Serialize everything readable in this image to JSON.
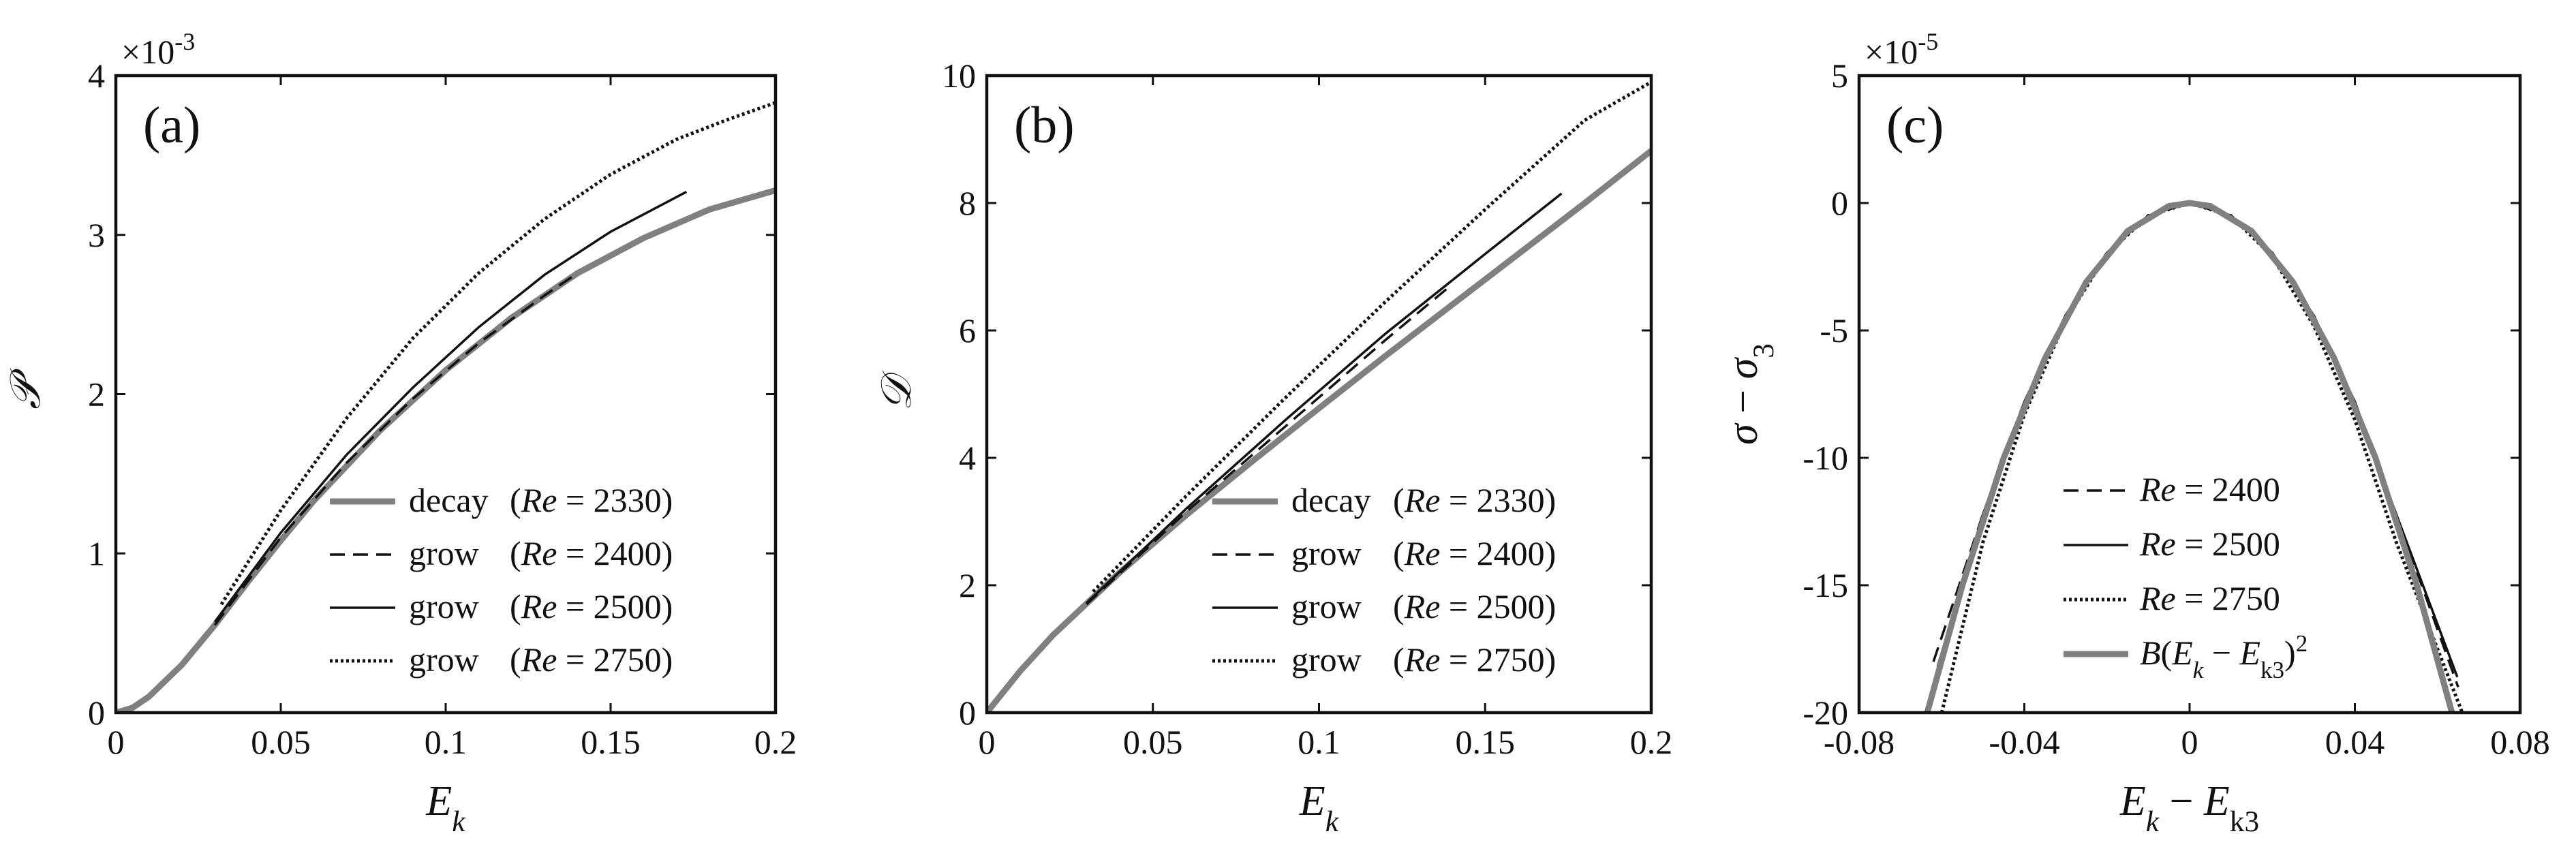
{
  "chart_data": [
    {
      "type": "line",
      "panel_label": "(a)",
      "xlabel": "E_k",
      "ylabel": "𝒫",
      "xlim": [
        0,
        0.2
      ],
      "ylim": [
        0,
        4
      ],
      "xticks": [
        0,
        0.05,
        0.1,
        0.15,
        0.2
      ],
      "xtick_labels": [
        "0",
        "0.05",
        "0.1",
        "0.15",
        "0.2"
      ],
      "yticks": [
        0,
        1,
        2,
        3,
        4
      ],
      "ytick_labels": [
        "0",
        "1",
        "2",
        "3",
        "4"
      ],
      "y_multiplier": "×10",
      "y_multiplier_exp": "-3",
      "legend_position": "bottom-right",
      "series": [
        {
          "name": "decay (Re = 2330)",
          "legend_word": "decay",
          "legend_cond": "(Re = 2330)",
          "style": "thick-gray",
          "color": "#808080",
          "x": [
            0,
            0.005,
            0.01,
            0.02,
            0.03,
            0.04,
            0.05,
            0.06,
            0.08,
            0.1,
            0.12,
            0.14,
            0.16,
            0.18,
            0.2
          ],
          "y": [
            0,
            0.03,
            0.1,
            0.3,
            0.55,
            0.82,
            1.08,
            1.33,
            1.77,
            2.15,
            2.48,
            2.76,
            2.98,
            3.16,
            3.28
          ]
        },
        {
          "name": "grow (Re = 2400)",
          "legend_word": "grow",
          "legend_cond": "(Re = 2400)",
          "style": "dashed",
          "color": "#000000",
          "x": [
            0.03,
            0.05,
            0.07,
            0.09,
            0.11,
            0.13,
            0.14
          ],
          "y": [
            0.55,
            1.1,
            1.57,
            1.97,
            2.32,
            2.62,
            2.76
          ]
        },
        {
          "name": "grow (Re = 2500)",
          "legend_word": "grow",
          "legend_cond": "(Re = 2500)",
          "style": "solid-thin",
          "color": "#000000",
          "x": [
            0.03,
            0.05,
            0.07,
            0.09,
            0.11,
            0.13,
            0.15,
            0.173
          ],
          "y": [
            0.57,
            1.13,
            1.62,
            2.04,
            2.42,
            2.75,
            3.02,
            3.27
          ]
        },
        {
          "name": "grow (Re = 2750)",
          "legend_word": "grow",
          "legend_cond": "(Re = 2750)",
          "style": "dotted",
          "color": "#000000",
          "x": [
            0.032,
            0.05,
            0.07,
            0.09,
            0.11,
            0.13,
            0.15,
            0.17,
            0.185,
            0.2
          ],
          "y": [
            0.68,
            1.27,
            1.85,
            2.35,
            2.76,
            3.1,
            3.38,
            3.6,
            3.72,
            3.83
          ]
        }
      ]
    },
    {
      "type": "line",
      "panel_label": "(b)",
      "xlabel": "E_k",
      "ylabel": "𝒟",
      "xlim": [
        0,
        0.2
      ],
      "ylim": [
        0,
        10
      ],
      "xticks": [
        0,
        0.05,
        0.1,
        0.15,
        0.2
      ],
      "xtick_labels": [
        "0",
        "0.05",
        "0.1",
        "0.15",
        "0.2"
      ],
      "yticks": [
        0,
        2,
        4,
        6,
        8,
        10
      ],
      "ytick_labels": [
        "0",
        "2",
        "4",
        "6",
        "8",
        "10"
      ],
      "legend_position": "bottom-right",
      "series": [
        {
          "name": "decay (Re = 2330)",
          "legend_word": "decay",
          "legend_cond": "(Re = 2330)",
          "style": "thick-gray",
          "color": "#808080",
          "x": [
            0,
            0.01,
            0.02,
            0.04,
            0.06,
            0.08,
            0.1,
            0.12,
            0.14,
            0.16,
            0.18,
            0.2
          ],
          "y": [
            0,
            0.65,
            1.22,
            2.2,
            3.1,
            3.95,
            4.78,
            5.6,
            6.4,
            7.2,
            8.0,
            8.82
          ]
        },
        {
          "name": "grow (Re = 2400)",
          "legend_word": "grow",
          "legend_cond": "(Re = 2400)",
          "style": "dashed",
          "color": "#000000",
          "x": [
            0.03,
            0.06,
            0.09,
            0.12,
            0.14
          ],
          "y": [
            1.7,
            3.15,
            4.5,
            5.85,
            6.72
          ]
        },
        {
          "name": "grow (Re = 2500)",
          "legend_word": "grow",
          "legend_cond": "(Re = 2500)",
          "style": "solid-thin",
          "color": "#000000",
          "x": [
            0.03,
            0.06,
            0.09,
            0.12,
            0.15,
            0.173
          ],
          "y": [
            1.72,
            3.2,
            4.6,
            5.95,
            7.2,
            8.15
          ]
        },
        {
          "name": "grow (Re = 2750)",
          "legend_word": "grow",
          "legend_cond": "(Re = 2750)",
          "style": "dotted",
          "color": "#000000",
          "x": [
            0.032,
            0.06,
            0.09,
            0.12,
            0.15,
            0.18,
            0.2
          ],
          "y": [
            1.9,
            3.4,
            4.95,
            6.45,
            7.9,
            9.3,
            9.9
          ]
        }
      ]
    },
    {
      "type": "line",
      "panel_label": "(c)",
      "xlabel": "E_k − E_k3",
      "ylabel": "σ − σ_3",
      "xlim": [
        -0.08,
        0.08
      ],
      "ylim": [
        -20,
        5
      ],
      "xticks": [
        -0.08,
        -0.04,
        0,
        0.04,
        0.08
      ],
      "xtick_labels": [
        "-0.08",
        "-0.04",
        "0",
        "0.04",
        "0.08"
      ],
      "yticks": [
        -20,
        -15,
        -10,
        -5,
        0,
        5
      ],
      "ytick_labels": [
        "-20",
        "-15",
        "-10",
        "-5",
        "0",
        "5"
      ],
      "y_multiplier": "×10",
      "y_multiplier_exp": "-5",
      "legend_position": "bottom-center",
      "series": [
        {
          "name": "Re = 2400",
          "legend_cond": "Re = 2400",
          "style": "dashed",
          "color": "#000000",
          "x": [
            -0.062,
            -0.05,
            -0.04,
            -0.03,
            -0.02,
            -0.01,
            0,
            0.01,
            0.02,
            0.03,
            0.04,
            0.05,
            0.065
          ],
          "y": [
            -18.0,
            -12.2,
            -7.8,
            -4.4,
            -1.95,
            -0.49,
            0,
            -0.49,
            -1.95,
            -4.4,
            -7.8,
            -12.2,
            -19.0
          ]
        },
        {
          "name": "Re = 2500",
          "legend_cond": "Re = 2500",
          "style": "solid-thin",
          "color": "#000000",
          "x": [
            -0.061,
            -0.05,
            -0.04,
            -0.03,
            -0.02,
            -0.01,
            0,
            0.01,
            0.02,
            0.03,
            0.04,
            0.05,
            0.0648
          ],
          "y": [
            -18.2,
            -12.2,
            -7.8,
            -4.4,
            -1.95,
            -0.49,
            0,
            -0.49,
            -1.95,
            -4.4,
            -7.8,
            -12.2,
            -18.6
          ]
        },
        {
          "name": "Re = 2750",
          "legend_cond": "Re = 2750",
          "style": "dotted",
          "color": "#000000",
          "x": [
            -0.06,
            -0.05,
            -0.04,
            -0.03,
            -0.02,
            -0.01,
            0,
            0.01,
            0.02,
            0.03,
            0.04,
            0.05,
            0.06,
            0.066
          ],
          "y": [
            -20.0,
            -13.3,
            -8.3,
            -4.6,
            -2.0,
            -0.5,
            0,
            -0.5,
            -2.1,
            -4.8,
            -8.5,
            -13.3,
            -17.5,
            -20.0
          ]
        },
        {
          "name": "B(E_k − E_k3)^2",
          "legend_cond": "B(E_k − E_k3)^2",
          "style": "thick-gray",
          "color": "#808080",
          "x": [
            -0.0635,
            -0.055,
            -0.045,
            -0.035,
            -0.025,
            -0.015,
            -0.005,
            0,
            0.005,
            0.015,
            0.025,
            0.035,
            0.045,
            0.055,
            0.0635
          ],
          "y": [
            -20.0,
            -15.0,
            -10.0,
            -6.1,
            -3.1,
            -1.1,
            -0.12,
            0,
            -0.12,
            -1.1,
            -3.1,
            -6.1,
            -10.0,
            -15.0,
            -20.0
          ]
        }
      ]
    }
  ]
}
